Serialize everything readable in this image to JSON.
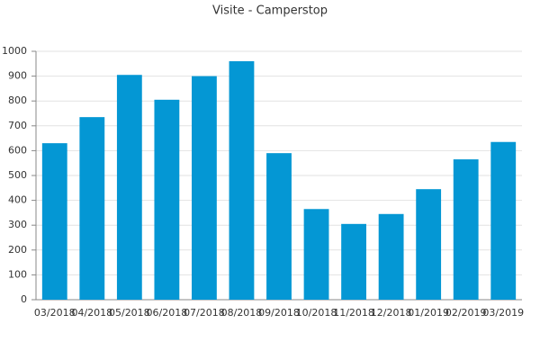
{
  "chart_data": {
    "type": "bar",
    "title": "Visite - Camperstop",
    "categories": [
      "03/2018",
      "04/2018",
      "05/2018",
      "06/2018",
      "07/2018",
      "08/2018",
      "09/2018",
      "10/2018",
      "11/2018",
      "12/2018",
      "01/2019",
      "02/2019",
      "03/2019"
    ],
    "values": [
      630,
      735,
      905,
      805,
      900,
      960,
      590,
      365,
      305,
      345,
      445,
      565,
      635
    ],
    "color": "#0497d4",
    "ylim": [
      0,
      1000
    ],
    "yticks": [
      0,
      100,
      200,
      300,
      400,
      500,
      600,
      700,
      800,
      900,
      1000
    ],
    "grid": true
  }
}
